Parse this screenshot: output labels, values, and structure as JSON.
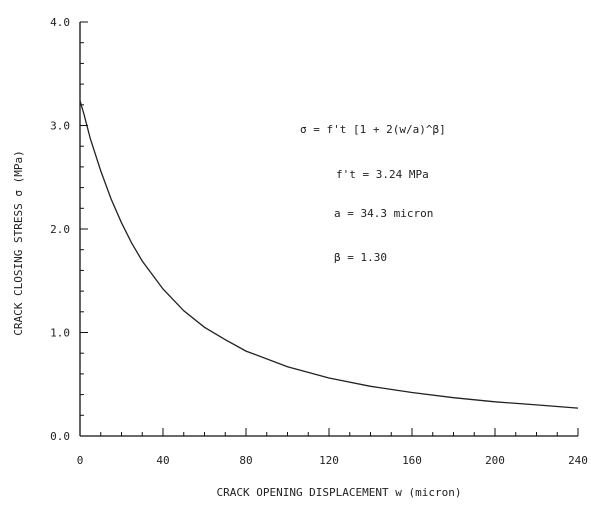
{
  "chart_data": {
    "type": "line",
    "title": "",
    "xlabel": "CRACK OPENING DISPLACEMENT w (micron)",
    "ylabel": "CRACK CLOSING STRESS σ (MPa)",
    "xlim": [
      0,
      240
    ],
    "ylim": [
      0,
      4.0
    ],
    "xticks": [
      "0",
      "40",
      "80",
      "120",
      "160",
      "200",
      "240"
    ],
    "yticks": [
      "0.0",
      "1.0",
      "2.0",
      "3.0",
      "4.0"
    ],
    "grid": false,
    "annotations": [
      "σ = f't [1 + 2(w/a)^β]",
      "f't = 3.24 MPa",
      "a = 34.3 micron",
      "β = 1.30"
    ],
    "series": [
      {
        "x": [
          0,
          2,
          5,
          10,
          15,
          20,
          25,
          30,
          40,
          50,
          60,
          70,
          80,
          100,
          120,
          140,
          160,
          180,
          200,
          220,
          240
        ],
        "values": [
          3.24,
          3.1,
          2.87,
          2.56,
          2.29,
          2.06,
          1.86,
          1.69,
          1.42,
          1.21,
          1.05,
          0.93,
          0.82,
          0.67,
          0.56,
          0.48,
          0.42,
          0.37,
          0.33,
          0.3,
          0.27
        ]
      }
    ]
  }
}
